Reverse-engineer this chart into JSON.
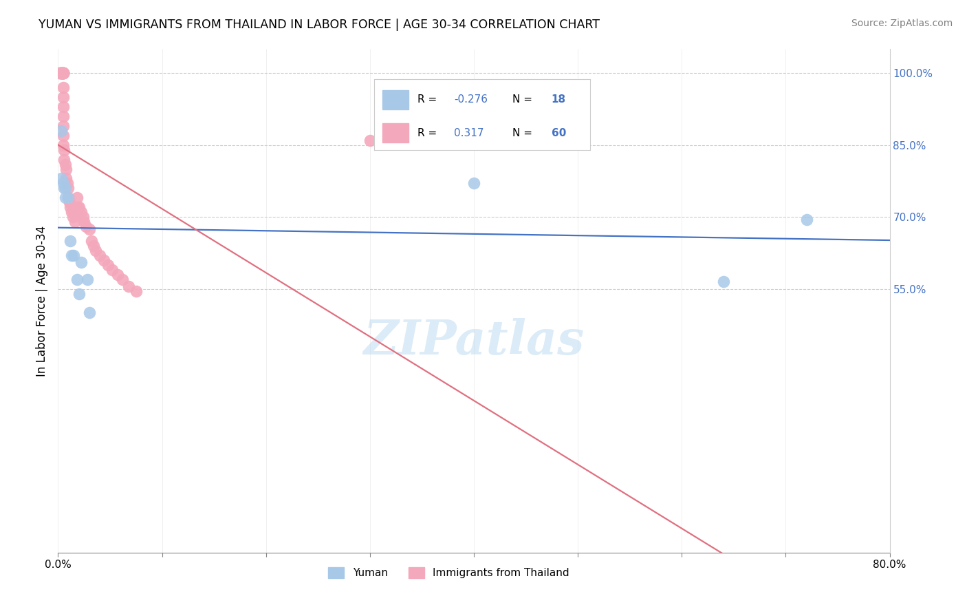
{
  "title": "YUMAN VS IMMIGRANTS FROM THAILAND IN LABOR FORCE | AGE 30-34 CORRELATION CHART",
  "source": "Source: ZipAtlas.com",
  "ylabel": "In Labor Force | Age 30-34",
  "yuman_color": "#a8c8e8",
  "thailand_color": "#f4a8bc",
  "yuman_line_color": "#4472c4",
  "thailand_line_color": "#e07080",
  "yuman_R": -0.276,
  "yuman_N": 18,
  "thailand_R": 0.317,
  "thailand_N": 60,
  "xlim": [
    0.0,
    0.8
  ],
  "ylim": [
    0.0,
    1.05
  ],
  "yticks": [
    0.55,
    0.7,
    0.85,
    1.0
  ],
  "ytick_labels": [
    "55.0%",
    "70.0%",
    "85.0%",
    "100.0%"
  ],
  "watermark": "ZIPatlas",
  "yuman_x": [
    0.003,
    0.003,
    0.005,
    0.006,
    0.007,
    0.007,
    0.01,
    0.012,
    0.013,
    0.015,
    0.018,
    0.02,
    0.022,
    0.028,
    0.03,
    0.4,
    0.64,
    0.72
  ],
  "yuman_y": [
    0.88,
    0.78,
    0.77,
    0.76,
    0.76,
    0.74,
    0.74,
    0.65,
    0.62,
    0.62,
    0.57,
    0.54,
    0.605,
    0.57,
    0.5,
    0.77,
    0.565,
    0.695
  ],
  "thailand_x": [
    0.001,
    0.002,
    0.002,
    0.003,
    0.003,
    0.003,
    0.003,
    0.003,
    0.004,
    0.004,
    0.004,
    0.004,
    0.005,
    0.005,
    0.005,
    0.005,
    0.005,
    0.005,
    0.005,
    0.005,
    0.005,
    0.005,
    0.005,
    0.005,
    0.005,
    0.005,
    0.005,
    0.006,
    0.006,
    0.007,
    0.008,
    0.008,
    0.009,
    0.01,
    0.01,
    0.011,
    0.012,
    0.013,
    0.014,
    0.016,
    0.018,
    0.019,
    0.02,
    0.022,
    0.024,
    0.025,
    0.027,
    0.03,
    0.032,
    0.034,
    0.036,
    0.04,
    0.044,
    0.048,
    0.052,
    0.057,
    0.062,
    0.068,
    0.075,
    0.3
  ],
  "thailand_y": [
    1.0,
    1.0,
    1.0,
    1.0,
    1.0,
    1.0,
    1.0,
    1.0,
    1.0,
    1.0,
    1.0,
    1.0,
    1.0,
    1.0,
    1.0,
    1.0,
    1.0,
    1.0,
    1.0,
    1.0,
    0.97,
    0.95,
    0.93,
    0.91,
    0.89,
    0.87,
    0.85,
    0.84,
    0.82,
    0.81,
    0.8,
    0.78,
    0.77,
    0.76,
    0.74,
    0.73,
    0.72,
    0.71,
    0.7,
    0.69,
    0.74,
    0.72,
    0.72,
    0.71,
    0.7,
    0.69,
    0.68,
    0.675,
    0.65,
    0.64,
    0.63,
    0.62,
    0.61,
    0.6,
    0.59,
    0.58,
    0.57,
    0.555,
    0.545,
    0.86
  ]
}
